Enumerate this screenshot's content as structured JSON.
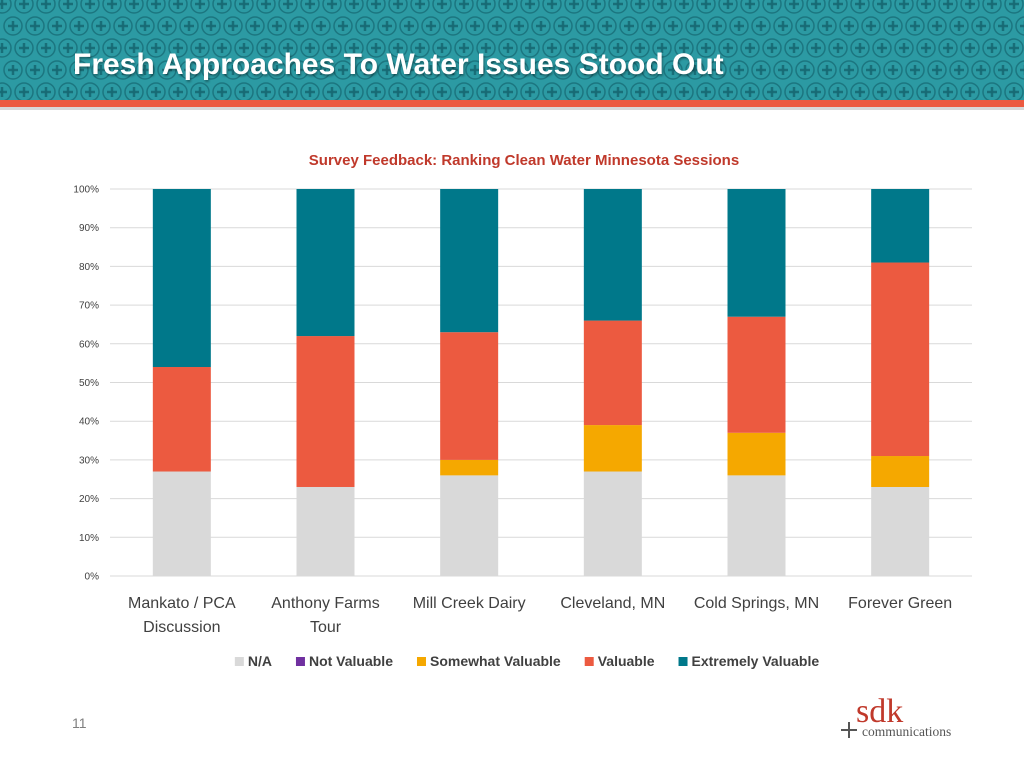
{
  "slide": {
    "title": "Fresh Approaches To Water Issues Stood Out",
    "page_number": "11"
  },
  "logo": {
    "brand": "sdk",
    "subtitle": "communications"
  },
  "colors": {
    "header_teal": "#2c9aa3",
    "header_plus": "#176a74",
    "accent_red": "#ec5a40"
  },
  "chart_data": {
    "type": "bar",
    "stacked": true,
    "percent": true,
    "title": "Survey Feedback: Ranking Clean Water Minnesota Sessions",
    "categories": [
      [
        "Mankato / PCA",
        "Discussion"
      ],
      [
        "Anthony Farms",
        "Tour"
      ],
      [
        "Mill Creek Dairy"
      ],
      [
        "Cleveland, MN"
      ],
      [
        "Cold Springs, MN"
      ],
      [
        "Forever Green"
      ]
    ],
    "y_ticks": [
      "0%",
      "10%",
      "20%",
      "30%",
      "40%",
      "50%",
      "60%",
      "70%",
      "80%",
      "90%",
      "100%"
    ],
    "ylim": [
      0,
      100
    ],
    "legend_position": "bottom",
    "series": [
      {
        "name": "N/A",
        "color": "#d9d9d9",
        "values": [
          27,
          23,
          26,
          27,
          26,
          23
        ]
      },
      {
        "name": "Not Valuable",
        "color": "#7030a0",
        "values": [
          0,
          0,
          0,
          0,
          0,
          0
        ]
      },
      {
        "name": "Somewhat Valuable",
        "color": "#f5a800",
        "values": [
          0,
          0,
          4,
          12,
          11,
          8
        ]
      },
      {
        "name": "Valuable",
        "color": "#ec5a40",
        "values": [
          27,
          39,
          33,
          27,
          30,
          50
        ]
      },
      {
        "name": "Extremely Valuable",
        "color": "#00788a",
        "values": [
          46,
          38,
          37,
          34,
          33,
          19
        ]
      }
    ]
  }
}
